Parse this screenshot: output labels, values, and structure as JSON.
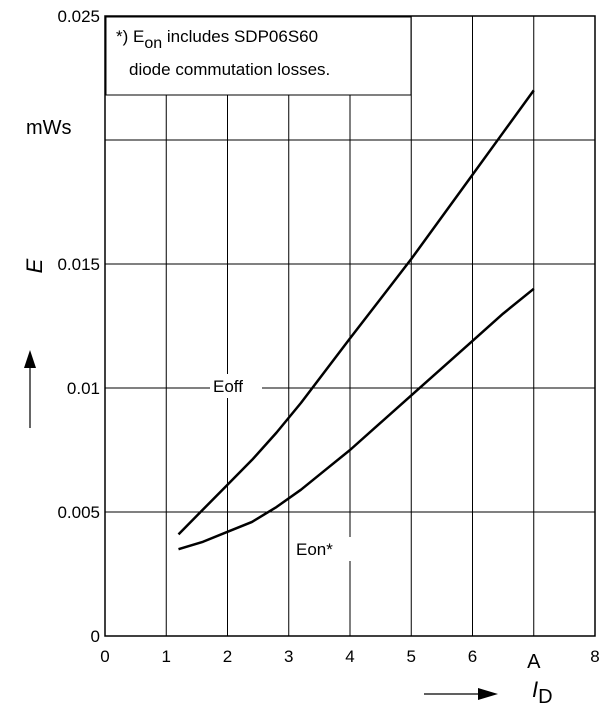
{
  "chart_data": {
    "type": "line",
    "xlabel": "I",
    "xlabel_sub": "D",
    "x_unit": "A",
    "ylabel": "E",
    "y_unit": "mWs",
    "xlim": [
      0,
      8
    ],
    "ylim": [
      0,
      0.025
    ],
    "x_ticks": [
      "0",
      "1",
      "2",
      "3",
      "4",
      "5",
      "6",
      "A",
      "8"
    ],
    "y_ticks": [
      {
        "value": 0,
        "label": "0"
      },
      {
        "value": 0.005,
        "label": "0.005"
      },
      {
        "value": 0.01,
        "label": "0.01"
      },
      {
        "value": 0.015,
        "label": "0.015"
      },
      {
        "value": 0.025,
        "label": "0.025"
      }
    ],
    "grid": true,
    "annotation": {
      "prefix": "*) E",
      "sub": "on",
      "line1_rest": " includes SDP06S60",
      "line2": "diode commutation losses."
    },
    "series": [
      {
        "name": "Eoff",
        "x": [
          1.2,
          1.6,
          2.0,
          2.4,
          2.8,
          3.2,
          3.6,
          4.0,
          4.5,
          5.0,
          5.5,
          6.0,
          6.5,
          7.0
        ],
        "y": [
          0.0041,
          0.0051,
          0.0061,
          0.0071,
          0.0082,
          0.0094,
          0.0107,
          0.012,
          0.0136,
          0.0152,
          0.0169,
          0.0186,
          0.0203,
          0.022
        ]
      },
      {
        "name": "Eon*",
        "x": [
          1.2,
          1.6,
          2.0,
          2.4,
          2.8,
          3.2,
          3.6,
          4.0,
          4.5,
          5.0,
          5.5,
          6.0,
          6.5,
          7.0
        ],
        "y": [
          0.0035,
          0.0038,
          0.0042,
          0.0046,
          0.0052,
          0.0059,
          0.0067,
          0.0075,
          0.0086,
          0.0097,
          0.0108,
          0.0119,
          0.013,
          0.014
        ]
      }
    ]
  }
}
